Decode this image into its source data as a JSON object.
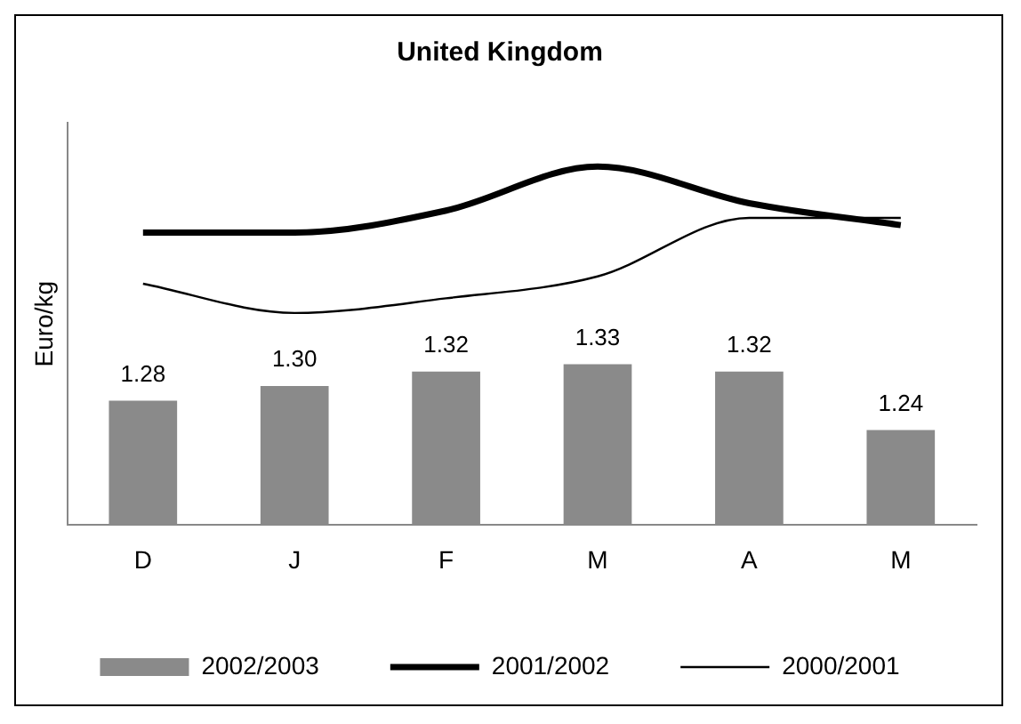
{
  "chart_data": {
    "type": "bar",
    "title": "United Kingdom",
    "ylabel": "Euro/kg",
    "categories": [
      "D",
      "J",
      "F",
      "M",
      "A",
      "M"
    ],
    "series": [
      {
        "name": "2002/2003",
        "color": "#8a8a8a",
        "values": [
          1.28,
          1.3,
          1.32,
          1.33,
          1.32,
          1.24
        ],
        "value_labels": [
          "1.28",
          "1.30",
          "1.32",
          "1.33",
          "1.32",
          "1.24"
        ]
      },
      {
        "name": "2001/2002",
        "type": "line",
        "color": "#000000",
        "values": [
          1.51,
          1.51,
          1.54,
          1.6,
          1.55,
          1.52
        ]
      },
      {
        "name": "2000/2001",
        "type": "line",
        "color": "#000000",
        "values": [
          1.44,
          1.4,
          1.42,
          1.45,
          1.53,
          1.53
        ]
      }
    ],
    "ylim": [
      1.11,
      1.66
    ],
    "tick_labels": "x",
    "grid": false,
    "legend": "bottom",
    "marker": "none",
    "line_style": "solid"
  }
}
